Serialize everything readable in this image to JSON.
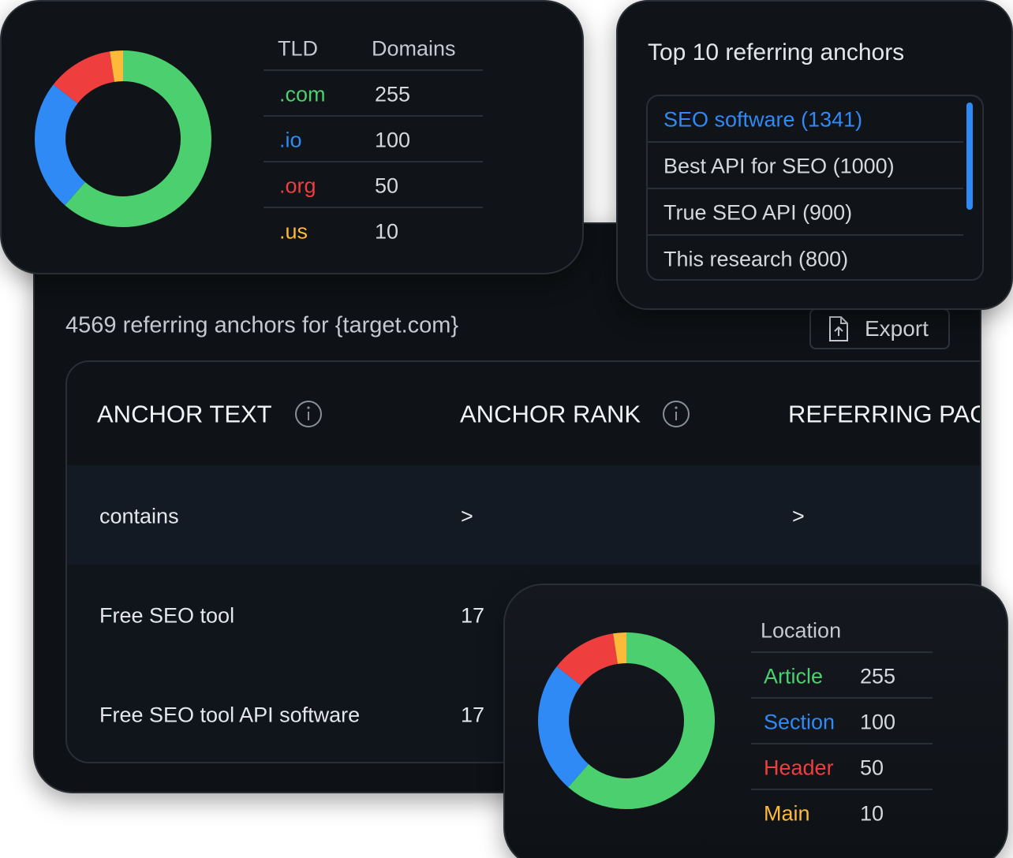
{
  "tld_card": {
    "headers": [
      "TLD",
      "Domains"
    ],
    "rows": [
      {
        "label": ".com",
        "value": 255,
        "color": "#4ccf6e"
      },
      {
        "label": ".io",
        "value": 100,
        "color": "#2f8af5"
      },
      {
        "label": ".org",
        "value": 50,
        "color": "#ef3e3e"
      },
      {
        "label": ".us",
        "value": 10,
        "color": "#fdb93a"
      }
    ]
  },
  "anchors_card": {
    "title": "Top 10 referring anchors",
    "items": [
      "SEO software (1341)",
      "Best API for SEO (1000)",
      "True SEO API (900)",
      "This research (800)"
    ]
  },
  "main": {
    "title": "4569 referring anchors for {target.com}",
    "export": "Export",
    "table": {
      "headers": [
        "ANCHOR TEXT",
        "ANCHOR RANK",
        "REFERRING PAG"
      ],
      "filter": [
        "contains",
        ">",
        ">"
      ],
      "rows": [
        [
          "Free SEO tool",
          17
        ],
        [
          "Free SEO tool API software",
          17
        ]
      ]
    }
  },
  "location_card": {
    "header": "Location",
    "rows": [
      {
        "label": "Article",
        "value": 255,
        "color": "#4ccf6e"
      },
      {
        "label": "Section",
        "value": 100,
        "color": "#2f8af5"
      },
      {
        "label": "Header",
        "value": 50,
        "color": "#ef3e3e"
      },
      {
        "label": "Main",
        "value": 10,
        "color": "#fdb93a"
      }
    ]
  }
}
